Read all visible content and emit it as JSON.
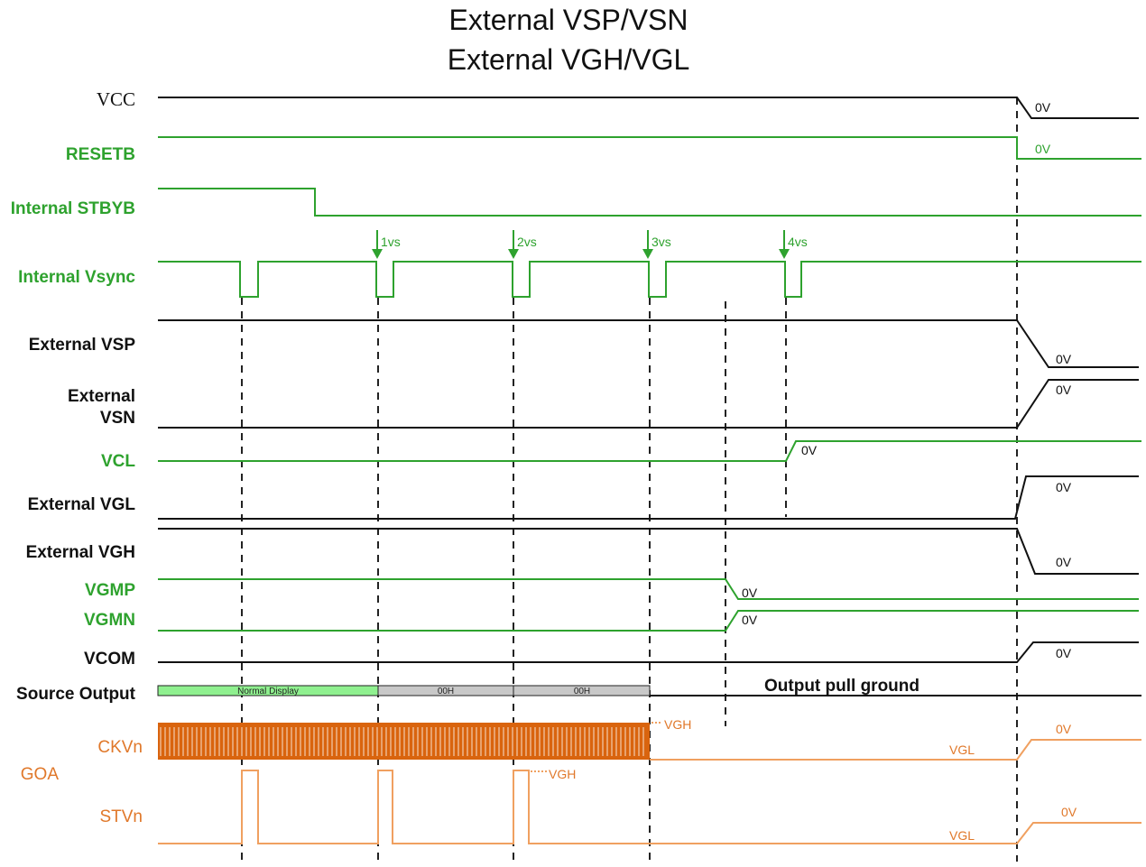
{
  "title": {
    "line1": "External VSP/VSN",
    "line2": "External VGH/VGL"
  },
  "signals": {
    "vcc": "VCC",
    "resetb": "RESETB",
    "stbyb": "Internal STBYB",
    "vsync": "Internal Vsync",
    "vsp": "External VSP",
    "vsn_line1": "External",
    "vsn_line2": "VSN",
    "vcl": "VCL",
    "vgl": "External VGL",
    "vgh": "External VGH",
    "vgmp": "VGMP",
    "vgmn": "VGMN",
    "vcom": "VCOM",
    "source": "Source Output",
    "ckv": "CKVn",
    "goa": "GOA",
    "stv": "STVn"
  },
  "vsync_markers": [
    "1vs",
    "2vs",
    "3vs",
    "4vs"
  ],
  "zero_v": "0V",
  "level_vgh": "VGH",
  "level_vgl": "VGL",
  "source_output": {
    "segments": [
      "Normal Display",
      "00H",
      "00H"
    ],
    "note": "Output pull ground"
  },
  "colors": {
    "black": "#111111",
    "green": "#2ea22e",
    "orange": "#f0a060",
    "ckv_fill": "#d9640e",
    "label_orange": "#e0782a",
    "bar_green": "#8ff08f",
    "bar_gray": "#c8c8c8"
  }
}
